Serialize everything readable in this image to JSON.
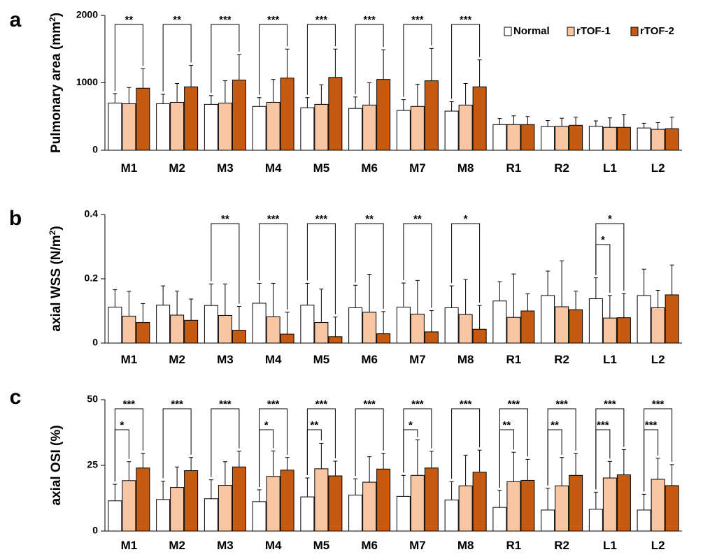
{
  "colors": {
    "normal": "#ffffff",
    "rtof1": "#f9c6a3",
    "rtof2": "#c55a11",
    "edge": "#000000"
  },
  "legend": [
    {
      "key": "normal",
      "label": "Normal"
    },
    {
      "key": "rtof1",
      "label": "rTOF-1"
    },
    {
      "key": "rtof2",
      "label": "rTOF-2"
    }
  ],
  "chart_data": [
    {
      "type": "bar",
      "panel": "a",
      "ylabel_main": "Pulmonary area (mm",
      "ylabel_sup": "2",
      "ylabel_end": ")",
      "ylim": [
        0,
        2000
      ],
      "yticks": [
        "0",
        "1000",
        "2000"
      ],
      "categories": [
        "M1",
        "M2",
        "M3",
        "M4",
        "M5",
        "M6",
        "M7",
        "M8",
        "R1",
        "R2",
        "L1",
        "L2"
      ],
      "series": [
        {
          "name": "Normal",
          "values": [
            700,
            690,
            680,
            650,
            630,
            620,
            590,
            580,
            380,
            350,
            355,
            330
          ],
          "err": [
            140,
            140,
            130,
            130,
            150,
            170,
            160,
            140,
            90,
            90,
            80,
            70
          ]
        },
        {
          "name": "rTOF-1",
          "values": [
            690,
            710,
            700,
            710,
            680,
            670,
            650,
            670,
            380,
            355,
            340,
            310
          ],
          "err": [
            240,
            280,
            330,
            340,
            290,
            330,
            330,
            320,
            130,
            120,
            140,
            100
          ]
        },
        {
          "name": "rTOF-2",
          "values": [
            920,
            940,
            1040,
            1070,
            1080,
            1050,
            1030,
            940,
            380,
            370,
            340,
            320
          ],
          "err": [
            290,
            320,
            380,
            430,
            420,
            440,
            480,
            400,
            120,
            120,
            190,
            170
          ]
        }
      ],
      "significance": [
        {
          "cat": 0,
          "from": 0,
          "to": 2,
          "label": "**",
          "level": 0
        },
        {
          "cat": 1,
          "from": 0,
          "to": 2,
          "label": "**",
          "level": 0
        },
        {
          "cat": 2,
          "from": 0,
          "to": 2,
          "label": "***",
          "level": 0
        },
        {
          "cat": 3,
          "from": 0,
          "to": 2,
          "label": "***",
          "level": 0
        },
        {
          "cat": 4,
          "from": 0,
          "to": 2,
          "label": "***",
          "level": 0
        },
        {
          "cat": 5,
          "from": 0,
          "to": 2,
          "label": "***",
          "level": 0
        },
        {
          "cat": 6,
          "from": 0,
          "to": 2,
          "label": "***",
          "level": 0
        },
        {
          "cat": 7,
          "from": 0,
          "to": 2,
          "label": "***",
          "level": 0
        }
      ]
    },
    {
      "type": "bar",
      "panel": "b",
      "ylabel_main": "axial WSS (N/m",
      "ylabel_sup": "2",
      "ylabel_end": ")",
      "ylim": [
        0,
        0.4
      ],
      "yticks": [
        "0",
        "0.2",
        "0.4"
      ],
      "categories": [
        "M1",
        "M2",
        "M3",
        "M4",
        "M5",
        "M6",
        "M7",
        "M8",
        "R1",
        "R2",
        "L1",
        "L2"
      ],
      "series": [
        {
          "name": "Normal",
          "values": [
            0.112,
            0.118,
            0.117,
            0.124,
            0.118,
            0.11,
            0.112,
            0.11,
            0.131,
            0.148,
            0.138,
            0.148
          ],
          "err": [
            0.054,
            0.06,
            0.067,
            0.062,
            0.068,
            0.07,
            0.075,
            0.068,
            0.06,
            0.076,
            0.065,
            0.082
          ]
        },
        {
          "name": "rTOF-1",
          "values": [
            0.084,
            0.087,
            0.086,
            0.082,
            0.064,
            0.096,
            0.09,
            0.089,
            0.08,
            0.113,
            0.078,
            0.11
          ],
          "err": [
            0.077,
            0.075,
            0.098,
            0.104,
            0.104,
            0.118,
            0.105,
            0.109,
            0.135,
            0.143,
            0.07,
            0.054
          ]
        },
        {
          "name": "rTOF-2",
          "values": [
            0.064,
            0.071,
            0.04,
            0.028,
            0.02,
            0.029,
            0.035,
            0.043,
            0.1,
            0.104,
            0.079,
            0.15
          ],
          "err": [
            0.059,
            0.066,
            0.074,
            0.068,
            0.061,
            0.069,
            0.066,
            0.074,
            0.053,
            0.058,
            0.075,
            0.093
          ]
        }
      ],
      "significance": [
        {
          "cat": 2,
          "from": 0,
          "to": 2,
          "label": "**",
          "level": 0
        },
        {
          "cat": 3,
          "from": 0,
          "to": 2,
          "label": "***",
          "level": 0
        },
        {
          "cat": 4,
          "from": 0,
          "to": 2,
          "label": "***",
          "level": 0
        },
        {
          "cat": 5,
          "from": 0,
          "to": 2,
          "label": "**",
          "level": 0
        },
        {
          "cat": 6,
          "from": 0,
          "to": 2,
          "label": "**",
          "level": 0
        },
        {
          "cat": 7,
          "from": 0,
          "to": 2,
          "label": "*",
          "level": 0
        },
        {
          "cat": 10,
          "from": 0,
          "to": 1,
          "label": "*",
          "level": 1
        },
        {
          "cat": 10,
          "from": 0,
          "to": 2,
          "label": "*",
          "level": 0
        }
      ]
    },
    {
      "type": "bar",
      "panel": "c",
      "ylabel_main": "axial OSI (%)",
      "ylabel_sup": "",
      "ylabel_end": "",
      "ylim": [
        0,
        50
      ],
      "yticks": [
        "0",
        "25",
        "50"
      ],
      "categories": [
        "M1",
        "M2",
        "M3",
        "M4",
        "M5",
        "M6",
        "M7",
        "M8",
        "R1",
        "R2",
        "L1",
        "L2"
      ],
      "series": [
        {
          "name": "Normal",
          "values": [
            11.5,
            12,
            12.3,
            11.2,
            13,
            13.7,
            13.2,
            11.8,
            9,
            8,
            8.3,
            8
          ],
          "err": [
            6.3,
            7,
            7.2,
            4.5,
            7.2,
            6.2,
            8,
            7,
            6.5,
            8.3,
            6.5,
            6
          ]
        },
        {
          "name": "rTOF-1",
          "values": [
            19.2,
            16.6,
            17.4,
            20.8,
            23.7,
            18.6,
            21.2,
            17.2,
            18.8,
            17.2,
            20.2,
            19.7
          ],
          "err": [
            7.2,
            7.8,
            9,
            9.7,
            9.7,
            9.7,
            13.5,
            11.7,
            11.2,
            10.8,
            6.3,
            8
          ]
        },
        {
          "name": "rTOF-2",
          "values": [
            24,
            23,
            24.4,
            23.2,
            21,
            23.6,
            24,
            22.4,
            19.3,
            21.2,
            21.4,
            17.3
          ],
          "err": [
            5.6,
            5,
            6,
            4.8,
            5.6,
            6,
            6.4,
            8.4,
            8,
            8.4,
            9.6,
            8
          ]
        }
      ],
      "significance": [
        {
          "cat": 0,
          "from": 0,
          "to": 2,
          "label": "***",
          "level": 0
        },
        {
          "cat": 0,
          "from": 0,
          "to": 1,
          "label": "*",
          "level": 1
        },
        {
          "cat": 1,
          "from": 0,
          "to": 2,
          "label": "***",
          "level": 0
        },
        {
          "cat": 2,
          "from": 0,
          "to": 2,
          "label": "***",
          "level": 0
        },
        {
          "cat": 3,
          "from": 0,
          "to": 2,
          "label": "***",
          "level": 0
        },
        {
          "cat": 3,
          "from": 0,
          "to": 1,
          "label": "*",
          "level": 1
        },
        {
          "cat": 4,
          "from": 0,
          "to": 2,
          "label": "***",
          "level": 0
        },
        {
          "cat": 4,
          "from": 0,
          "to": 1,
          "label": "**",
          "level": 1
        },
        {
          "cat": 5,
          "from": 0,
          "to": 2,
          "label": "***",
          "level": 0
        },
        {
          "cat": 6,
          "from": 0,
          "to": 2,
          "label": "***",
          "level": 0
        },
        {
          "cat": 6,
          "from": 0,
          "to": 1,
          "label": "*",
          "level": 1
        },
        {
          "cat": 7,
          "from": 0,
          "to": 2,
          "label": "***",
          "level": 0
        },
        {
          "cat": 8,
          "from": 0,
          "to": 2,
          "label": "***",
          "level": 0
        },
        {
          "cat": 8,
          "from": 0,
          "to": 1,
          "label": "**",
          "level": 1
        },
        {
          "cat": 9,
          "from": 0,
          "to": 2,
          "label": "***",
          "level": 0
        },
        {
          "cat": 9,
          "from": 0,
          "to": 1,
          "label": "**",
          "level": 1
        },
        {
          "cat": 10,
          "from": 0,
          "to": 2,
          "label": "***",
          "level": 0
        },
        {
          "cat": 10,
          "from": 0,
          "to": 1,
          "label": "***",
          "level": 1
        },
        {
          "cat": 11,
          "from": 0,
          "to": 2,
          "label": "***",
          "level": 0
        },
        {
          "cat": 11,
          "from": 0,
          "to": 1,
          "label": "***",
          "level": 1
        }
      ]
    }
  ]
}
